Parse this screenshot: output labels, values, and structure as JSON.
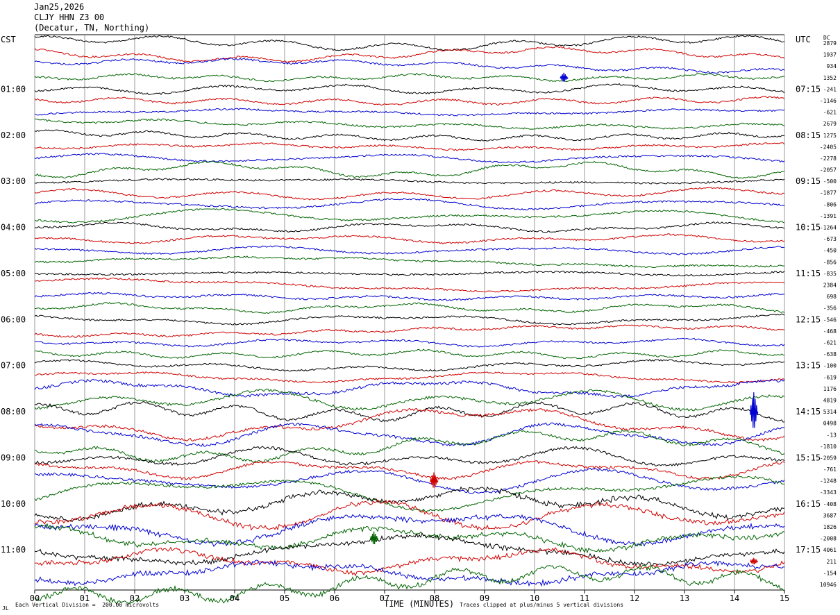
{
  "header": {
    "date": "Jan25,2026",
    "station": "CLJY HHN Z3 00",
    "location": "(Decatur, TN, Northing)"
  },
  "labels": {
    "left_zone": "CST",
    "right_zone": "UTC",
    "dc_header": "DC"
  },
  "footer": {
    "division_note": "Each Vertical Division =  200.00 microvolts",
    "xlabel": "TIME (MINUTES)",
    "clip_note": "Traces clipped at plus/minus 5 vertical divisions",
    "corner_mark": "JL"
  },
  "colors": {
    "black": "#000000",
    "red": "#d00000",
    "blue": "#0000d0",
    "green": "#006400",
    "grid": "#808080"
  },
  "chart_data": {
    "type": "line",
    "title": "CLJY HHN Z3 00",
    "xlabel": "TIME (MINUTES)",
    "xlim": [
      0,
      15
    ],
    "x_ticks": [
      "00",
      "01",
      "02",
      "03",
      "04",
      "05",
      "06",
      "07",
      "08",
      "09",
      "10",
      "11",
      "12",
      "13",
      "14",
      "15"
    ],
    "y_hour_labels_left": [
      "01:00",
      "02:00",
      "03:00",
      "04:00",
      "05:00",
      "06:00",
      "07:00",
      "08:00",
      "09:00",
      "10:00",
      "11:00"
    ],
    "y_hour_labels_right": [
      "07:15",
      "08:15",
      "09:15",
      "10:15",
      "11:15",
      "12:15",
      "13:15",
      "14:15",
      "15:15",
      "16:15",
      "17:15"
    ],
    "trace_colors": [
      "black",
      "red",
      "blue",
      "green"
    ],
    "dc_offsets": [
      "2879",
      "1937",
      "934",
      "1352",
      "-241",
      "-1146",
      "-621",
      "2679",
      "1275",
      "-2405",
      "-2278",
      "-2057",
      "-500",
      "-1877",
      "-806",
      "-1391",
      "-1264",
      "-673",
      "-450",
      "-856",
      "-835",
      "2384",
      "698",
      "-356",
      "-546",
      "-468",
      "-621",
      "-638",
      "-100",
      "-619",
      "1176",
      "4819",
      "5314",
      "0498",
      "-13",
      "-1810",
      "-2059",
      "-761",
      "-1248",
      "-3343",
      "-408",
      "3687",
      "1826",
      "-2008",
      "4061",
      "211",
      "-154",
      "10946"
    ]
  }
}
